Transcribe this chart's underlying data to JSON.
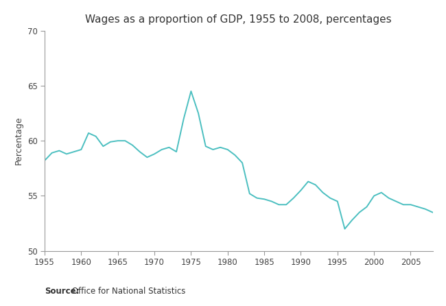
{
  "title": "Wages as a proportion of GDP, 1955 to 2008, percentages",
  "ylabel": "Percentage",
  "source_bold": "Source:",
  "source_rest": " Office for National Statistics",
  "line_color": "#4BBFC0",
  "background_color": "#ffffff",
  "xlim": [
    1955,
    2008
  ],
  "ylim": [
    50,
    70
  ],
  "yticks": [
    50,
    55,
    60,
    65,
    70
  ],
  "xticks": [
    1955,
    1960,
    1965,
    1970,
    1975,
    1980,
    1985,
    1990,
    1995,
    2000,
    2005
  ],
  "years": [
    1955,
    1956,
    1957,
    1958,
    1959,
    1960,
    1961,
    1962,
    1963,
    1964,
    1965,
    1966,
    1967,
    1968,
    1969,
    1970,
    1971,
    1972,
    1973,
    1974,
    1975,
    1976,
    1977,
    1978,
    1979,
    1980,
    1981,
    1982,
    1983,
    1984,
    1985,
    1986,
    1987,
    1988,
    1989,
    1990,
    1991,
    1992,
    1993,
    1994,
    1995,
    1996,
    1997,
    1998,
    1999,
    2000,
    2001,
    2002,
    2003,
    2004,
    2005,
    2006,
    2007,
    2008
  ],
  "values": [
    58.2,
    58.9,
    59.1,
    58.8,
    59.0,
    59.2,
    60.7,
    60.4,
    59.5,
    59.9,
    60.0,
    60.0,
    59.6,
    59.0,
    58.5,
    58.8,
    59.2,
    59.4,
    59.0,
    62.0,
    64.5,
    62.5,
    59.5,
    59.2,
    59.4,
    59.2,
    58.7,
    58.0,
    55.2,
    54.8,
    54.7,
    54.5,
    54.2,
    54.2,
    54.8,
    55.5,
    56.3,
    56.0,
    55.3,
    54.8,
    54.5,
    52.0,
    52.8,
    53.5,
    54.0,
    55.0,
    55.3,
    54.8,
    54.5,
    54.2,
    54.2,
    54.0,
    53.8,
    53.5
  ],
  "line_width": 1.4,
  "title_fontsize": 11,
  "label_fontsize": 9,
  "tick_fontsize": 8.5,
  "source_fontsize": 8.5,
  "spine_color": "#999999"
}
